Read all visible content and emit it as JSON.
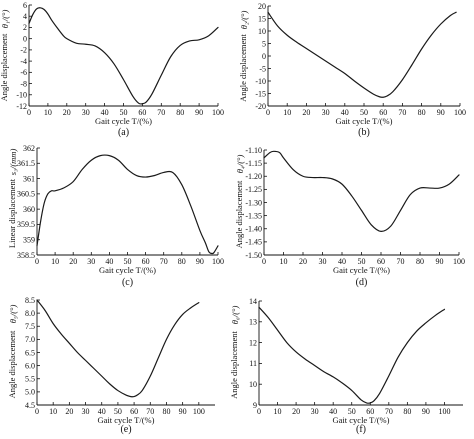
{
  "colors": {
    "curve": "#1a1a1a",
    "axis": "#111111",
    "background": "#ffffff"
  },
  "chart_data": [
    {
      "panel": "(a)",
      "type": "line",
      "ylabel_main": "Angle displacement",
      "ylabel_symbol": "θ₁/(°)",
      "xlabel": "Gait cycle   T/(%)",
      "xlim": [
        0,
        100
      ],
      "ylim": [
        -12,
        6
      ],
      "xticks": [
        0,
        10,
        20,
        30,
        40,
        50,
        60,
        70,
        80,
        90,
        100
      ],
      "yticks": [
        -12,
        -10,
        -8,
        -6,
        -4,
        -2,
        0,
        2,
        4,
        6
      ],
      "x": [
        0,
        2,
        4,
        6,
        8,
        10,
        12,
        15,
        18,
        20,
        25,
        30,
        35,
        40,
        45,
        50,
        55,
        58,
        60,
        62,
        65,
        70,
        75,
        80,
        85,
        90,
        95,
        100
      ],
      "y": [
        2.7,
        4.3,
        5.3,
        5.5,
        5.2,
        4.4,
        3.3,
        1.9,
        0.6,
        0.0,
        -0.8,
        -1.0,
        -1.3,
        -2.5,
        -4.5,
        -7.3,
        -10.3,
        -11.5,
        -11.6,
        -11.3,
        -9.9,
        -6.5,
        -3.2,
        -1.2,
        -0.4,
        -0.2,
        0.5,
        2.0
      ]
    },
    {
      "panel": "(b)",
      "type": "line",
      "ylabel_main": "Angle displacement",
      "ylabel_symbol": "θ₂/(°)",
      "xlabel": "Gait cycle   T/(%)",
      "xlim": [
        0,
        100
      ],
      "ylim": [
        -20,
        20
      ],
      "xticks": [
        0,
        10,
        20,
        30,
        40,
        50,
        60,
        70,
        80,
        90,
        100
      ],
      "yticks": [
        -20,
        -15,
        -10,
        -5,
        0,
        5,
        10,
        15,
        20
      ],
      "x": [
        0,
        5,
        10,
        15,
        20,
        25,
        30,
        35,
        40,
        45,
        50,
        55,
        58,
        60,
        62,
        65,
        70,
        75,
        80,
        85,
        90,
        95,
        98
      ],
      "y": [
        17.5,
        12.0,
        8.3,
        5.5,
        3.0,
        0.5,
        -2.0,
        -4.5,
        -7.0,
        -10.0,
        -12.8,
        -15.3,
        -16.3,
        -16.5,
        -16.0,
        -14.3,
        -9.5,
        -3.5,
        2.8,
        8.3,
        12.8,
        16.2,
        17.5
      ]
    },
    {
      "panel": "(c)",
      "type": "line",
      "ylabel_main": "Linear displacement",
      "ylabel_symbol": "s₃/(mm)",
      "xlabel": "Gait cycle   T/(%)",
      "xlim": [
        0,
        100
      ],
      "ylim": [
        358.5,
        362.0
      ],
      "xticks": [
        0,
        10,
        20,
        30,
        40,
        50,
        60,
        70,
        80,
        90,
        100
      ],
      "yticks": [
        358.5,
        359.0,
        359.5,
        360.0,
        360.5,
        361.0,
        361.5,
        362.0
      ],
      "x": [
        0,
        2,
        4,
        6,
        8,
        10,
        15,
        20,
        25,
        30,
        35,
        40,
        45,
        50,
        55,
        60,
        65,
        70,
        75,
        80,
        85,
        90,
        93,
        95,
        97,
        98,
        100
      ],
      "y": [
        358.8,
        359.6,
        360.2,
        360.5,
        360.6,
        360.6,
        360.7,
        360.9,
        361.3,
        361.6,
        361.75,
        361.75,
        361.6,
        361.3,
        361.1,
        361.05,
        361.1,
        361.2,
        361.2,
        360.8,
        360.1,
        359.3,
        358.9,
        358.6,
        358.55,
        358.6,
        358.8
      ]
    },
    {
      "panel": "(d)",
      "type": "line",
      "ylabel_main": "Angle displacement",
      "ylabel_symbol": "θ₄/(°)",
      "xlabel": "Gait cycle   T/(%)",
      "xlim": [
        0,
        100
      ],
      "ylim": [
        -1.5,
        -1.1
      ],
      "xticks": [
        0,
        10,
        20,
        30,
        40,
        50,
        60,
        70,
        80,
        90,
        100
      ],
      "yticks": [
        -1.5,
        -1.45,
        -1.4,
        -1.35,
        -1.3,
        -1.25,
        -1.2,
        -1.15,
        -1.1
      ],
      "ytick_labels": [
        "-1.50",
        "-1.45",
        "-1.40",
        "-1.35",
        "-1.30",
        "-1.25",
        "-1.20",
        "-1.15",
        "-1.10"
      ],
      "x": [
        0,
        3,
        5,
        8,
        10,
        15,
        20,
        25,
        30,
        35,
        40,
        45,
        50,
        55,
        60,
        65,
        70,
        75,
        80,
        85,
        90,
        95,
        100
      ],
      "y": [
        -1.13,
        -1.11,
        -1.105,
        -1.11,
        -1.13,
        -1.175,
        -1.2,
        -1.205,
        -1.205,
        -1.21,
        -1.23,
        -1.275,
        -1.33,
        -1.385,
        -1.41,
        -1.39,
        -1.33,
        -1.27,
        -1.245,
        -1.245,
        -1.245,
        -1.23,
        -1.195
      ]
    },
    {
      "panel": "(e)",
      "type": "line",
      "ylabel_main": "Angle displacement",
      "ylabel_symbol": "θ₅/(°)",
      "xlabel": "Gait cycle   T/(%)",
      "xlim": [
        0,
        110
      ],
      "ylim": [
        4.5,
        8.5
      ],
      "xticks": [
        0,
        10,
        20,
        30,
        40,
        50,
        60,
        70,
        80,
        90,
        100
      ],
      "yticks": [
        4.5,
        5.0,
        5.5,
        6.0,
        6.5,
        7.0,
        7.5,
        8.0,
        8.5
      ],
      "ytick_labels": [
        "4.5",
        "5.0",
        "5.5",
        "6.0",
        "6.5",
        "7.0",
        "7.5",
        "8.0",
        "8.5"
      ],
      "x": [
        0,
        5,
        10,
        15,
        20,
        25,
        30,
        35,
        40,
        45,
        50,
        55,
        58,
        60,
        62,
        65,
        70,
        75,
        80,
        85,
        90,
        95,
        100
      ],
      "y": [
        8.5,
        8.1,
        7.6,
        7.2,
        6.85,
        6.5,
        6.2,
        5.9,
        5.6,
        5.3,
        5.05,
        4.88,
        4.82,
        4.82,
        4.88,
        5.05,
        5.6,
        6.3,
        7.0,
        7.55,
        7.95,
        8.2,
        8.4
      ]
    },
    {
      "panel": "(f)",
      "type": "line",
      "ylabel_main": "Angle displacement",
      "ylabel_symbol": "θ₆/(°)",
      "xlabel": "Gait cycle   T/(%)",
      "xlim": [
        0,
        110
      ],
      "ylim": [
        9,
        14
      ],
      "xticks": [
        0,
        10,
        20,
        30,
        40,
        50,
        60,
        70,
        80,
        90,
        100
      ],
      "yticks": [
        9,
        10,
        11,
        12,
        13,
        14
      ],
      "x": [
        0,
        5,
        10,
        15,
        20,
        25,
        30,
        35,
        40,
        45,
        50,
        55,
        58,
        60,
        62,
        65,
        70,
        75,
        80,
        85,
        90,
        95,
        100
      ],
      "y": [
        13.7,
        13.2,
        12.6,
        12.0,
        11.55,
        11.2,
        10.9,
        10.6,
        10.35,
        10.05,
        9.7,
        9.25,
        9.1,
        9.1,
        9.2,
        9.55,
        10.4,
        11.3,
        12.0,
        12.55,
        12.95,
        13.3,
        13.6
      ]
    }
  ]
}
